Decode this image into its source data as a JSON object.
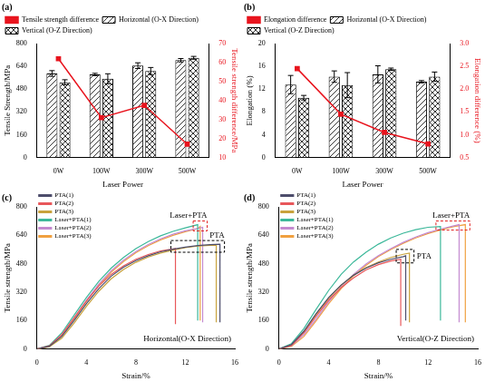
{
  "chart_data": [
    {
      "type": "bar",
      "title": "(a)",
      "x_label": "Laser Power",
      "y_label": "Tensile Strength/MPa",
      "y2_label": "Tensile strength difference/MPa",
      "categories": [
        "0W",
        "100W",
        "300W",
        "500W"
      ],
      "series": [
        {
          "name": "Horizontal (O-X Direction)",
          "color": "#000000",
          "values": [
            590,
            583,
            645,
            683
          ],
          "errors": [
            20,
            8,
            20,
            12
          ]
        },
        {
          "name": "Vertical (O-Z Direction)",
          "color": "#000000",
          "values": [
            528,
            553,
            607,
            700
          ],
          "errors": [
            18,
            35,
            25,
            10
          ]
        },
        {
          "name": "Tensile strength difference",
          "type": "line",
          "axis": "y2",
          "color": "#e8141e",
          "marker": "square",
          "values": [
            62,
            31,
            37.5,
            17
          ]
        }
      ],
      "ylim": [
        0,
        800
      ],
      "yticks": [
        0,
        160,
        320,
        480,
        640,
        800
      ],
      "y2lim": [
        10,
        70
      ],
      "y2ticks": [
        10,
        20,
        30,
        40,
        50,
        60,
        70
      ],
      "grid": false,
      "legend": "top"
    },
    {
      "type": "bar",
      "title": "(b)",
      "x_label": "Laser Power",
      "y_label": "Elongation (%)",
      "y2_label": "Elongation difference (%)",
      "categories": [
        "0W",
        "100W",
        "300W",
        "500W"
      ],
      "series": [
        {
          "name": "Horizontal (O-X Direction)",
          "color": "#000000",
          "values": [
            12.8,
            14.2,
            14.6,
            13.3
          ],
          "errors": [
            1.6,
            1.0,
            1.5,
            0.2
          ]
        },
        {
          "name": "Vertical (O-Z Direction)",
          "color": "#000000",
          "values": [
            10.5,
            12.7,
            15.5,
            14.2
          ],
          "errors": [
            0.4,
            2.2,
            0.2,
            0.8
          ]
        },
        {
          "name": "Elongation difference",
          "type": "line",
          "axis": "y2",
          "color": "#e8141e",
          "marker": "square",
          "values": [
            2.45,
            1.45,
            1.05,
            0.8
          ]
        }
      ],
      "ylim": [
        0,
        20
      ],
      "yticks": [
        0,
        4,
        8,
        12,
        16,
        20
      ],
      "y2lim": [
        0.5,
        3
      ],
      "y2ticks": [
        0.5,
        {
          "value": 1,
          "label": "1.0"
        },
        1.5,
        {
          "value": 2,
          "label": "2.0"
        },
        2.5,
        {
          "value": 3,
          "label": "3.0"
        }
      ],
      "grid": false,
      "legend": "top"
    },
    {
      "type": "line",
      "title": "(c)",
      "x_label": "Strain/%",
      "y_label": "Tensile strength/MPa",
      "annotations": [
        "Laser+PTA",
        "PTA",
        "Horizontal(O-X Direction)"
      ],
      "series": [
        {
          "name": "PTA(1)",
          "color": "#4d4d6b",
          "x": [
            0,
            1,
            2,
            3,
            4,
            5,
            6,
            7,
            8,
            9,
            10,
            11,
            12,
            13,
            14,
            14.8,
            14.8
          ],
          "values": [
            0,
            15,
            70,
            160,
            255,
            340,
            410,
            460,
            497,
            525,
            547,
            562,
            573,
            582,
            587,
            590,
            150
          ]
        },
        {
          "name": "PTA(2)",
          "color": "#e8575a",
          "x": [
            0,
            1,
            2,
            3,
            4,
            5,
            6,
            7,
            8,
            9,
            10,
            11,
            11.2,
            11.2
          ],
          "values": [
            0,
            18,
            80,
            175,
            270,
            355,
            420,
            468,
            505,
            532,
            552,
            563,
            565,
            140
          ]
        },
        {
          "name": "PTA(3)",
          "color": "#c8a23c",
          "x": [
            0,
            1,
            2,
            3,
            4,
            5,
            6,
            7,
            8,
            9,
            10,
            11,
            12,
            13,
            14,
            14.5,
            14.5
          ],
          "values": [
            0,
            12,
            60,
            145,
            240,
            325,
            395,
            448,
            488,
            518,
            540,
            557,
            570,
            579,
            584,
            585,
            150
          ]
        },
        {
          "name": "Laser+PTA(1)",
          "color": "#3cb89a",
          "x": [
            0,
            1,
            2,
            3,
            4,
            5,
            6,
            7,
            8,
            9,
            10,
            11,
            12,
            13,
            13
          ],
          "values": [
            0,
            20,
            90,
            190,
            290,
            380,
            455,
            515,
            565,
            605,
            637,
            662,
            682,
            700,
            160
          ]
        },
        {
          "name": "Laser+PTA(2)",
          "color": "#c48ad0",
          "x": [
            0,
            1,
            2,
            3,
            4,
            5,
            6,
            7,
            8,
            9,
            10,
            11,
            12,
            13,
            13.4,
            13.4
          ],
          "values": [
            0,
            16,
            80,
            175,
            275,
            365,
            440,
            500,
            548,
            588,
            620,
            646,
            665,
            678,
            685,
            150
          ]
        },
        {
          "name": "Laser+PTA(3)",
          "color": "#f0a040",
          "x": [
            0,
            1,
            2,
            3,
            4,
            5,
            6,
            7,
            8,
            9,
            10,
            11,
            12,
            13,
            13.2,
            13.2
          ],
          "values": [
            0,
            14,
            75,
            168,
            268,
            357,
            432,
            492,
            542,
            582,
            614,
            640,
            660,
            677,
            690,
            160
          ]
        }
      ],
      "xlim": [
        0,
        16
      ],
      "xticks": [
        0,
        4,
        8,
        12,
        16
      ],
      "ylim": [
        0,
        800
      ],
      "yticks": [
        0,
        160,
        320,
        480,
        640,
        800
      ],
      "grid": false,
      "legend": "upper left"
    },
    {
      "type": "line",
      "title": "(d)",
      "x_label": "Strain/%",
      "y_label": "Tensile strength/MPa",
      "annotations": [
        "Laser+PTA",
        "PTA",
        "Vertical(O-Z Direction)"
      ],
      "series": [
        {
          "name": "PTA(1)",
          "color": "#4d4d6b",
          "x": [
            0,
            1,
            2,
            3,
            4,
            5,
            6,
            7,
            8,
            9,
            10,
            10.2,
            10.2
          ],
          "values": [
            0,
            25,
            100,
            200,
            290,
            360,
            415,
            455,
            485,
            505,
            520,
            525,
            160
          ]
        },
        {
          "name": "PTA(2)",
          "color": "#e8575a",
          "x": [
            0,
            1,
            2,
            3,
            4,
            5,
            6,
            7,
            8,
            9,
            9.8,
            9.8
          ],
          "values": [
            0,
            20,
            90,
            185,
            275,
            345,
            400,
            445,
            475,
            495,
            505,
            130
          ]
        },
        {
          "name": "PTA(3)",
          "color": "#c8a23c",
          "x": [
            0,
            1,
            2,
            3,
            4,
            5,
            6,
            7,
            8,
            9,
            10,
            10.5,
            10.5
          ],
          "values": [
            0,
            22,
            95,
            195,
            285,
            358,
            415,
            458,
            490,
            515,
            533,
            540,
            150
          ]
        },
        {
          "name": "Laser+PTA(1)",
          "color": "#3cb89a",
          "x": [
            0,
            1,
            2,
            3,
            4,
            5,
            6,
            7,
            8,
            9,
            10,
            11,
            12,
            13,
            13
          ],
          "values": [
            0,
            30,
            115,
            225,
            330,
            420,
            490,
            545,
            590,
            625,
            652,
            672,
            685,
            690,
            160
          ]
        },
        {
          "name": "Laser+PTA(2)",
          "color": "#c48ad0",
          "x": [
            0,
            1,
            2,
            3,
            4,
            5,
            6,
            7,
            8,
            9,
            10,
            11,
            12,
            13,
            14,
            14.5,
            14.5
          ],
          "values": [
            0,
            18,
            80,
            170,
            265,
            350,
            420,
            478,
            525,
            565,
            600,
            630,
            655,
            675,
            692,
            700,
            150
          ]
        },
        {
          "name": "Laser+PTA(3)",
          "color": "#f0a040",
          "x": [
            0,
            1,
            2,
            3,
            4,
            5,
            6,
            7,
            8,
            9,
            10,
            11,
            12,
            13,
            14,
            15,
            15
          ],
          "values": [
            0,
            15,
            70,
            160,
            255,
            340,
            412,
            470,
            520,
            560,
            595,
            625,
            650,
            670,
            688,
            700,
            150
          ]
        }
      ],
      "xlim": [
        0,
        16
      ],
      "xticks": [
        0,
        4,
        8,
        12,
        16
      ],
      "ylim": [
        0,
        800
      ],
      "yticks": [
        0,
        160,
        320,
        480,
        640,
        800
      ],
      "grid": false,
      "legend": "upper left"
    }
  ]
}
